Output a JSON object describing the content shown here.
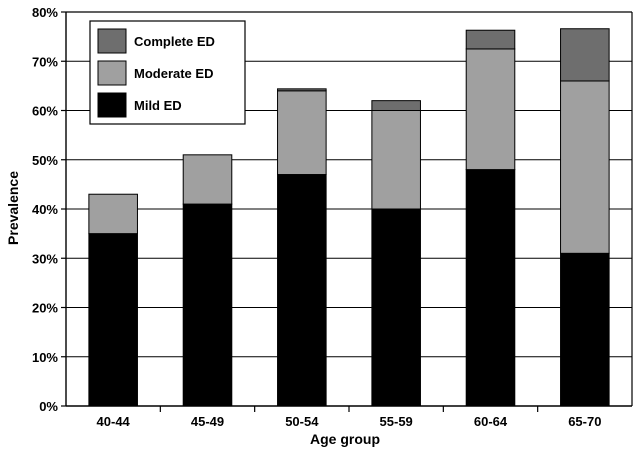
{
  "chart_data": {
    "type": "bar",
    "stacked": true,
    "title": "",
    "xlabel": "Age group",
    "ylabel": "Prevalence",
    "categories": [
      "40-44",
      "45-49",
      "50-54",
      "55-59",
      "60-64",
      "65-70"
    ],
    "series": [
      {
        "name": "Mild ED",
        "color": "#000000",
        "values": [
          35,
          41,
          47,
          40,
          48,
          31
        ]
      },
      {
        "name": "Moderate ED",
        "color": "#a0a0a0",
        "values": [
          8,
          10,
          17,
          20,
          24.5,
          35
        ]
      },
      {
        "name": "Complete ED",
        "color": "#6e6e6e",
        "values": [
          0,
          0,
          0.4,
          2,
          3.8,
          10.6
        ]
      }
    ],
    "ylim": [
      0,
      80
    ],
    "yticks": [
      0,
      10,
      20,
      30,
      40,
      50,
      60,
      70,
      80
    ],
    "ytick_labels": [
      "0%",
      "10%",
      "20%",
      "30%",
      "40%",
      "50%",
      "60%",
      "70%",
      "80%"
    ],
    "grid": true,
    "legend_position": "top-left",
    "legend_order": [
      "Complete ED",
      "Moderate ED",
      "Mild ED"
    ]
  }
}
